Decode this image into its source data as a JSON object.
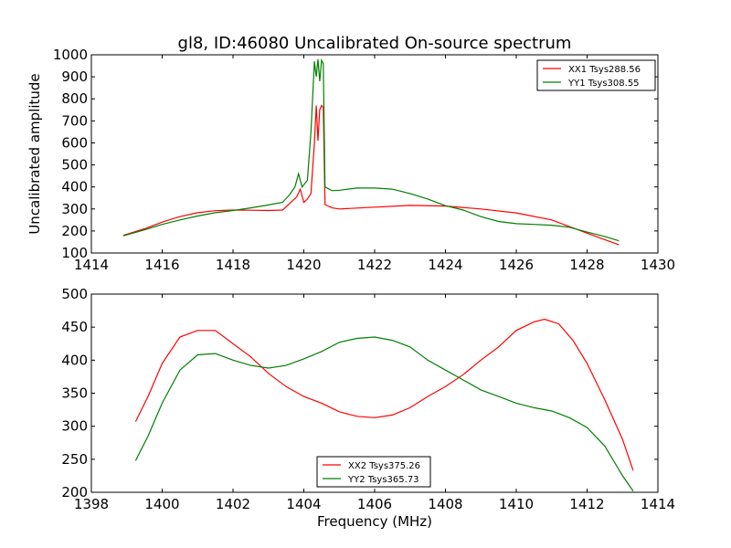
{
  "chart_data": [
    {
      "type": "line",
      "title": "gl8, ID:46080 Uncalibrated On-source spectrum",
      "xlabel": "",
      "ylabel": "Uncalibrated amplitude",
      "xlim": [
        1414,
        1430
      ],
      "ylim": [
        100,
        1000
      ],
      "xticks": [
        1414,
        1416,
        1418,
        1420,
        1422,
        1424,
        1426,
        1428,
        1430
      ],
      "yticks": [
        100,
        200,
        300,
        400,
        500,
        600,
        700,
        800,
        900,
        1000
      ],
      "legend_position": "top-right",
      "series": [
        {
          "name": "XX1 Tsys288.56",
          "color": "#ff0000",
          "points": [
            [
              1414.9,
              180
            ],
            [
              1415.5,
              210
            ],
            [
              1416,
              240
            ],
            [
              1416.5,
              265
            ],
            [
              1417,
              283
            ],
            [
              1417.5,
              292
            ],
            [
              1418,
              295
            ],
            [
              1418.5,
              294
            ],
            [
              1419,
              293
            ],
            [
              1419.4,
              295
            ],
            [
              1419.6,
              325
            ],
            [
              1419.8,
              355
            ],
            [
              1419.9,
              390
            ],
            [
              1420.0,
              330
            ],
            [
              1420.1,
              345
            ],
            [
              1420.2,
              370
            ],
            [
              1420.3,
              600
            ],
            [
              1420.35,
              770
            ],
            [
              1420.4,
              610
            ],
            [
              1420.45,
              750
            ],
            [
              1420.5,
              770
            ],
            [
              1420.55,
              760
            ],
            [
              1420.6,
              320
            ],
            [
              1420.8,
              305
            ],
            [
              1421,
              300
            ],
            [
              1422,
              308
            ],
            [
              1423,
              316
            ],
            [
              1424,
              313
            ],
            [
              1425,
              300
            ],
            [
              1426,
              282
            ],
            [
              1427,
              250
            ],
            [
              1428,
              190
            ],
            [
              1428.9,
              137
            ]
          ]
        },
        {
          "name": "YY1 Tsys308.55",
          "color": "#008000",
          "points": [
            [
              1414.9,
              178
            ],
            [
              1415.5,
              205
            ],
            [
              1416,
              230
            ],
            [
              1416.5,
              250
            ],
            [
              1417,
              268
            ],
            [
              1417.5,
              283
            ],
            [
              1418,
              293
            ],
            [
              1418.5,
              305
            ],
            [
              1419,
              318
            ],
            [
              1419.4,
              330
            ],
            [
              1419.6,
              365
            ],
            [
              1419.75,
              400
            ],
            [
              1419.85,
              460
            ],
            [
              1419.95,
              400
            ],
            [
              1420.1,
              430
            ],
            [
              1420.2,
              650
            ],
            [
              1420.3,
              970
            ],
            [
              1420.35,
              900
            ],
            [
              1420.4,
              980
            ],
            [
              1420.45,
              880
            ],
            [
              1420.5,
              975
            ],
            [
              1420.55,
              960
            ],
            [
              1420.6,
              400
            ],
            [
              1420.8,
              383
            ],
            [
              1421,
              385
            ],
            [
              1421.5,
              395
            ],
            [
              1422,
              395
            ],
            [
              1422.5,
              390
            ],
            [
              1423,
              370
            ],
            [
              1423.5,
              345
            ],
            [
              1424,
              315
            ],
            [
              1424.5,
              295
            ],
            [
              1425,
              265
            ],
            [
              1425.5,
              243
            ],
            [
              1426,
              233
            ],
            [
              1426.5,
              230
            ],
            [
              1427,
              226
            ],
            [
              1427.5,
              217
            ],
            [
              1428,
              195
            ],
            [
              1428.5,
              175
            ],
            [
              1428.9,
              155
            ]
          ]
        }
      ]
    },
    {
      "type": "line",
      "title": "",
      "xlabel": "Frequency (MHz)",
      "ylabel": "",
      "xlim": [
        1398,
        1414
      ],
      "ylim": [
        200,
        500
      ],
      "xticks": [
        1398,
        1400,
        1402,
        1404,
        1406,
        1408,
        1410,
        1412,
        1414
      ],
      "yticks": [
        200,
        250,
        300,
        350,
        400,
        450,
        500
      ],
      "legend_position": "bottom-center",
      "series": [
        {
          "name": "XX2 Tsys375.26",
          "color": "#ff0000",
          "points": [
            [
              1399.25,
              307
            ],
            [
              1399.6,
              345
            ],
            [
              1400,
              395
            ],
            [
              1400.5,
              435
            ],
            [
              1401,
              445
            ],
            [
              1401.5,
              445
            ],
            [
              1402,
              425
            ],
            [
              1402.5,
              405
            ],
            [
              1403,
              380
            ],
            [
              1403.5,
              360
            ],
            [
              1404,
              345
            ],
            [
              1404.5,
              335
            ],
            [
              1405,
              322
            ],
            [
              1405.5,
              315
            ],
            [
              1406,
              313
            ],
            [
              1406.5,
              317
            ],
            [
              1407,
              328
            ],
            [
              1407.5,
              345
            ],
            [
              1408,
              360
            ],
            [
              1408.5,
              378
            ],
            [
              1409,
              400
            ],
            [
              1409.5,
              420
            ],
            [
              1410,
              445
            ],
            [
              1410.5,
              458
            ],
            [
              1410.8,
              462
            ],
            [
              1411.2,
              455
            ],
            [
              1411.6,
              430
            ],
            [
              1412,
              395
            ],
            [
              1412.5,
              340
            ],
            [
              1413,
              280
            ],
            [
              1413.3,
              233
            ]
          ]
        },
        {
          "name": "YY2 Tsys365.73",
          "color": "#008000",
          "points": [
            [
              1399.25,
              248
            ],
            [
              1399.6,
              285
            ],
            [
              1400,
              335
            ],
            [
              1400.5,
              385
            ],
            [
              1401,
              408
            ],
            [
              1401.5,
              410
            ],
            [
              1402,
              400
            ],
            [
              1402.5,
              392
            ],
            [
              1403,
              388
            ],
            [
              1403.5,
              392
            ],
            [
              1404,
              402
            ],
            [
              1404.5,
              413
            ],
            [
              1405,
              427
            ],
            [
              1405.5,
              433
            ],
            [
              1406,
              435
            ],
            [
              1406.5,
              430
            ],
            [
              1407,
              420
            ],
            [
              1407.5,
              400
            ],
            [
              1408,
              385
            ],
            [
              1408.5,
              370
            ],
            [
              1409,
              355
            ],
            [
              1409.5,
              345
            ],
            [
              1410,
              335
            ],
            [
              1410.5,
              328
            ],
            [
              1411,
              323
            ],
            [
              1411.5,
              313
            ],
            [
              1412,
              298
            ],
            [
              1412.5,
              270
            ],
            [
              1413,
              225
            ],
            [
              1413.3,
              202
            ]
          ]
        }
      ]
    }
  ]
}
